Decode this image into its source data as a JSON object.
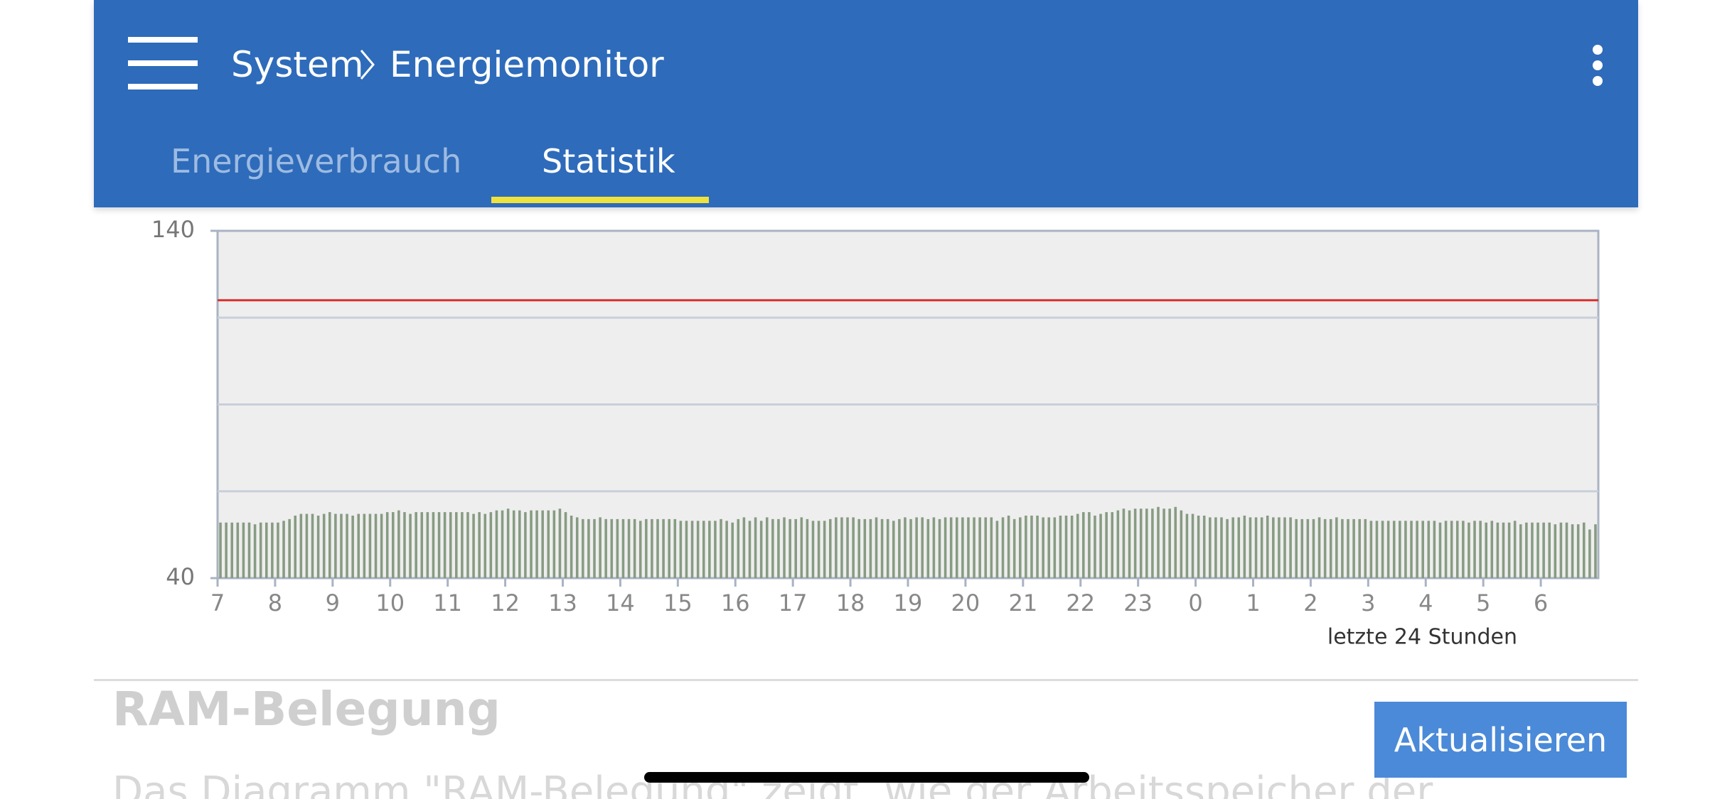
{
  "breadcrumb": [
    "System",
    "Energiemonitor"
  ],
  "tabs": [
    "Energieverbrauch",
    "Statistik"
  ],
  "section_title": "RAM-Belegung",
  "button": "Aktualisieren",
  "paragraph": "Das Diagramm \"RAM-Belegung\" zeigt, wie der Arbeitsspeicher der",
  "chart_data": {
    "type": "bar",
    "x_label": "letzte 24 Stunden",
    "color": "#879b82",
    "ylim": [
      40,
      140
    ],
    "yticks": [
      40,
      140
    ],
    "gridlines": [
      65,
      90,
      115
    ],
    "reference_line": {
      "value": 120,
      "color": "#d9302c"
    },
    "categories": [
      "7",
      null,
      null,
      null,
      null,
      null,
      null,
      null,
      null,
      null,
      "8",
      null,
      null,
      null,
      null,
      null,
      null,
      null,
      null,
      null,
      "9",
      null,
      null,
      null,
      null,
      null,
      null,
      null,
      null,
      null,
      "10",
      null,
      null,
      null,
      null,
      null,
      null,
      null,
      null,
      null,
      "11",
      null,
      null,
      null,
      null,
      null,
      null,
      null,
      null,
      null,
      "12",
      null,
      null,
      null,
      null,
      null,
      null,
      null,
      null,
      null,
      "13",
      null,
      null,
      null,
      null,
      null,
      null,
      null,
      null,
      null,
      "14",
      null,
      null,
      null,
      null,
      null,
      null,
      null,
      null,
      null,
      "15",
      null,
      null,
      null,
      null,
      null,
      null,
      null,
      null,
      null,
      "16",
      null,
      null,
      null,
      null,
      null,
      null,
      null,
      null,
      null,
      "17",
      null,
      null,
      null,
      null,
      null,
      null,
      null,
      null,
      null,
      "18",
      null,
      null,
      null,
      null,
      null,
      null,
      null,
      null,
      null,
      "19",
      null,
      null,
      null,
      null,
      null,
      null,
      null,
      null,
      null,
      "20",
      null,
      null,
      null,
      null,
      null,
      null,
      null,
      null,
      null,
      "21",
      null,
      null,
      null,
      null,
      null,
      null,
      null,
      null,
      null,
      "22",
      null,
      null,
      null,
      null,
      null,
      null,
      null,
      null,
      null,
      "23",
      null,
      null,
      null,
      null,
      null,
      null,
      null,
      null,
      null,
      "0",
      null,
      null,
      null,
      null,
      null,
      null,
      null,
      null,
      null,
      "1",
      null,
      null,
      null,
      null,
      null,
      null,
      null,
      null,
      null,
      "2",
      null,
      null,
      null,
      null,
      null,
      null,
      null,
      null,
      null,
      "3",
      null,
      null,
      null,
      null,
      null,
      null,
      null,
      null,
      null,
      "4",
      null,
      null,
      null,
      null,
      null,
      null,
      null,
      null,
      null,
      "5",
      null,
      null,
      null,
      null,
      null,
      null,
      null,
      null,
      null,
      "6",
      null,
      null,
      null,
      null,
      null,
      null,
      null,
      null,
      null
    ],
    "values": [
      56,
      56,
      56,
      56,
      56,
      56,
      55.5,
      56,
      56,
      56,
      56,
      56.5,
      57,
      58,
      58.5,
      58.5,
      58.5,
      58,
      58.5,
      59,
      58.5,
      58.5,
      58.5,
      58,
      58.5,
      58.5,
      58.5,
      58.5,
      58.5,
      59,
      59,
      59.5,
      59,
      58.5,
      59,
      59,
      59,
      59,
      59,
      59,
      59,
      59,
      59,
      59,
      58.5,
      59,
      58.5,
      59,
      59.5,
      59.5,
      60,
      59.5,
      59.5,
      59,
      59.5,
      59.5,
      59.5,
      59.5,
      59.5,
      60,
      59,
      58,
      57.5,
      57,
      57,
      57,
      57.5,
      57,
      57,
      57,
      57,
      57,
      57,
      56.5,
      57,
      57,
      57,
      57,
      57,
      57,
      56.5,
      56.5,
      56.5,
      56.5,
      56.5,
      56.5,
      56.5,
      57,
      56.5,
      56,
      57,
      57.5,
      56.5,
      57.5,
      56.5,
      57.5,
      57,
      57,
      57.5,
      57,
      57,
      57.5,
      57,
      56.5,
      56.5,
      56.5,
      57,
      57.5,
      57.5,
      57.5,
      57.5,
      57,
      57,
      57,
      57.5,
      57,
      57,
      56.5,
      57,
      57.5,
      57,
      57.5,
      57.5,
      57,
      57.5,
      57,
      57.5,
      57.5,
      57.5,
      57.5,
      57.5,
      57.5,
      57.5,
      57.5,
      57.5,
      56.5,
      57.5,
      58,
      57,
      57.5,
      58,
      58,
      58,
      57.5,
      57.5,
      57.5,
      58,
      58,
      58,
      58.5,
      59,
      59,
      58,
      58.5,
      59,
      59,
      59.5,
      60,
      59.5,
      60,
      60,
      60,
      60,
      60.5,
      60,
      60,
      60.5,
      59.5,
      58.5,
      58.5,
      58,
      58,
      57.5,
      57.5,
      57.5,
      57,
      57.5,
      57.5,
      58,
      57.5,
      57.5,
      57.5,
      58,
      57.5,
      57.5,
      57.5,
      57.5,
      57,
      57,
      57,
      57,
      57.5,
      57,
      57,
      57.5,
      57,
      57,
      57,
      57,
      57,
      56.5,
      56.5,
      56.5,
      56.5,
      56.5,
      56.5,
      56.5,
      56.5,
      56.5,
      56.5,
      56.5,
      56.5,
      56,
      56.5,
      56.5,
      56.5,
      56.5,
      56,
      56.5,
      56.5,
      56,
      56.5,
      56,
      56,
      56,
      56.5,
      55.5,
      56,
      56,
      56,
      56,
      56,
      55.5,
      56,
      56,
      55.5,
      55.5,
      56,
      54,
      55.5
    ]
  }
}
